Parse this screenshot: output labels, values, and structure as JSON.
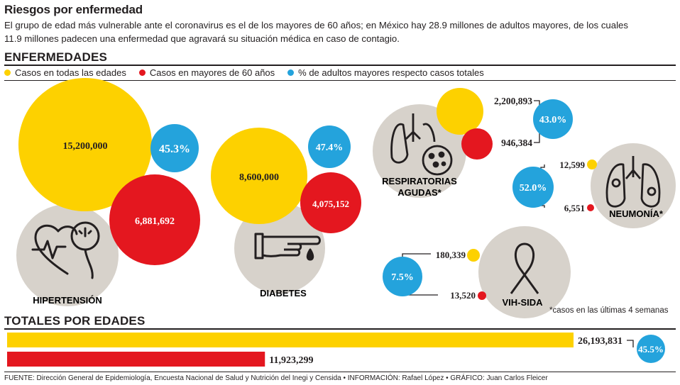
{
  "title": "Riesgos por enfermedad",
  "intro": "El grupo de edad más vulnerable ante el coronavirus es el de los mayores de 60 años; en México hay 28.9 millones de adultos mayores, de los cuales 11.9 millones padecen una enfermedad que agravará su situación médica en caso de contagio.",
  "section_enfermedades": "ENFERMEDADES",
  "section_totales": "TOTALES POR EDADES",
  "legend": [
    {
      "label": "Casos en todas las edades",
      "color": "#fdd100"
    },
    {
      "label": "Casos en mayores de 60 años",
      "color": "#e4171f"
    },
    {
      "label": "% de adultos mayores respecto casos totales",
      "color": "#24a3dc"
    }
  ],
  "colors": {
    "yellow": "#fdd100",
    "red": "#e4171f",
    "blue": "#24a3dc",
    "gray": "#d7d2cb",
    "ink": "#231f20"
  },
  "note": "*casos en las últimas 4 semanas",
  "footer": "FUENTE: Dirección General de Epidemiología, Encuesta Nacional de Salud y Nutrición del Inegi y Censida • INFORMACIÓN: Rafael López • GRÁFICO: Juan Carlos Fleicer",
  "chart_data": [
    {
      "type": "bubble",
      "title": "ENFERMEDADES",
      "series": [
        {
          "name": "Casos en todas las edades",
          "values": [
            15200000,
            8600000,
            2200893,
            12599,
            180339
          ]
        },
        {
          "name": "Casos en mayores de 60 años",
          "values": [
            6881692,
            4075152,
            946384,
            6551,
            13520
          ]
        },
        {
          "name": "% de adultos mayores respecto casos totales",
          "values": [
            45.3,
            47.4,
            43.0,
            52.0,
            7.5
          ]
        }
      ],
      "categories": [
        "HIPERTENSIÓN",
        "DIABETES",
        "RESPIRATORIAS AGUDAS*",
        "NEUMONÍA*",
        "VIH-SIDA"
      ],
      "labels": {
        "all": [
          "15,200,000",
          "8,600,000",
          "2,200,893",
          "12,599",
          "180,339"
        ],
        "old": [
          "6,881,692",
          "4,075,152",
          "946,384",
          "6,551",
          "13,520"
        ],
        "pct": [
          "45.3%",
          "47.4%",
          "43.0%",
          "52.0%",
          "7.5%"
        ]
      }
    },
    {
      "type": "bar",
      "title": "TOTALES POR EDADES",
      "categories": [
        "Casos en todas las edades",
        "Casos en mayores de 60 años"
      ],
      "values": [
        26193831,
        11923299
      ],
      "value_labels": [
        "26,193,831",
        "11,923,299"
      ],
      "percent": 45.5,
      "percent_label": "45.5%"
    }
  ]
}
